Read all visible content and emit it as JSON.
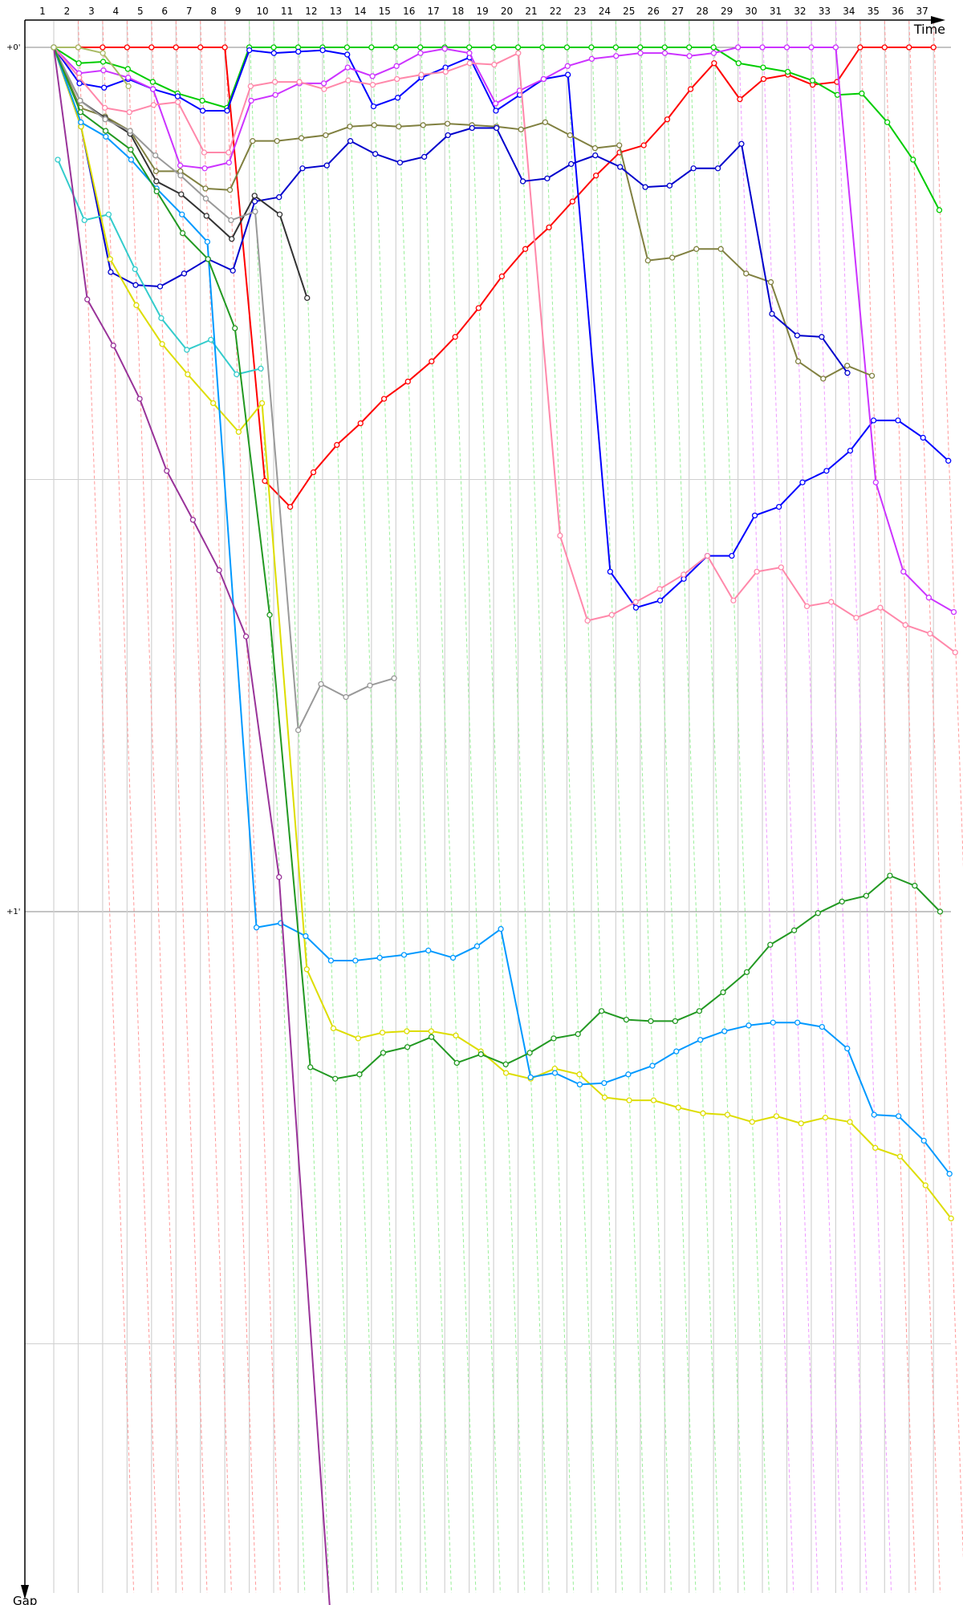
{
  "chart_data": {
    "type": "line",
    "xlabel": "Time",
    "ylabel": "Gap",
    "x_tick_labels": [
      "1",
      "2",
      "3",
      "4",
      "5",
      "6",
      "7",
      "8",
      "9",
      "10",
      "11",
      "12",
      "13",
      "14",
      "15",
      "16",
      "17",
      "18",
      "19",
      "20",
      "21",
      "22",
      "23",
      "24",
      "25",
      "26",
      "27",
      "28",
      "29",
      "30",
      "31",
      "32",
      "33",
      "34",
      "35",
      "36",
      "37"
    ],
    "y_tick_labels": [
      {
        "value": 0,
        "label": "+0'"
      },
      {
        "value": 60,
        "label": "+1'"
      }
    ],
    "y_gridlines_seconds": [
      0,
      30,
      60,
      90
    ],
    "ylim_seconds": [
      0,
      108
    ],
    "grid": true,
    "lap_line_colors": {
      "laps_1_7": "#ff9999",
      "laps_8_27": "#99ee99",
      "laps_28_32": "#ee99ff",
      "laps_33_36": "#ff9999"
    },
    "series": [
      {
        "color": "#ff0000",
        "values": [
          0,
          0,
          0,
          0,
          0,
          0,
          0,
          0,
          30.1,
          31.9,
          29.5,
          27.6,
          26.1,
          24.4,
          23.2,
          21.8,
          20.1,
          18.1,
          15.9,
          14.0,
          12.5,
          10.7,
          8.9,
          7.3,
          6.8,
          5.0,
          2.9,
          1.1,
          3.6,
          2.2,
          1.9,
          2.6,
          2.4,
          0,
          0,
          0,
          0
        ]
      },
      {
        "color": "#00cc00",
        "values": [
          0,
          1.1,
          1.0,
          1.5,
          2.4,
          3.2,
          3.7,
          4.2,
          0,
          0,
          0,
          0,
          0,
          0,
          0,
          0,
          0,
          0,
          0,
          0,
          0,
          0,
          0,
          0,
          0,
          0,
          0,
          0,
          1.1,
          1.4,
          1.7,
          2.3,
          3.3,
          3.2,
          5.2,
          7.8,
          11.3
        ]
      },
      {
        "color": "#0000ff",
        "values": [
          0,
          2.5,
          2.8,
          2.2,
          2.9,
          3.4,
          4.4,
          4.4,
          0.2,
          0.4,
          0.3,
          0.2,
          0.5,
          4.1,
          3.5,
          2.1,
          1.4,
          0.7,
          4.4,
          3.3,
          2.2,
          1.9,
          36.4,
          38.9,
          38.4,
          36.9,
          35.3,
          35.3,
          32.5,
          31.9,
          30.2,
          29.4,
          28.0,
          25.9,
          25.9,
          27.1,
          28.7
        ]
      },
      {
        "color": "#cc33ff",
        "values": [
          0,
          1.8,
          1.6,
          2.1,
          2.9,
          8.2,
          8.4,
          8.0,
          3.7,
          3.3,
          2.5,
          2.5,
          1.4,
          2.0,
          1.3,
          0.4,
          0.1,
          0.4,
          3.9,
          3.0,
          2.2,
          1.3,
          0.8,
          0.6,
          0.4,
          0.4,
          0.6,
          0.4,
          0,
          0,
          0,
          0,
          0,
          30.2,
          36.4,
          38.2,
          39.2
        ]
      },
      {
        "color": "#ff88aa",
        "values": [
          0,
          2.1,
          4.2,
          4.5,
          4.0,
          3.8,
          7.3,
          7.3,
          2.7,
          2.4,
          2.4,
          2.9,
          2.3,
          2.6,
          2.2,
          1.9,
          1.7,
          1.1,
          1.2,
          0.4,
          33.9,
          39.8,
          39.4,
          38.5,
          37.6,
          36.6,
          35.3,
          38.4,
          36.4,
          36.1,
          38.8,
          38.5,
          39.6,
          38.9,
          40.1,
          40.7,
          42.0
        ]
      },
      {
        "color": "#808040",
        "values": [
          0,
          4.2,
          4.8,
          5.8,
          8.6,
          8.6,
          9.8,
          9.9,
          6.5,
          6.5,
          6.3,
          6.1,
          5.5,
          5.4,
          5.5,
          5.4,
          5.3,
          5.4,
          5.5,
          5.7,
          5.2,
          6.1,
          7.0,
          6.8,
          14.8,
          14.6,
          14.0,
          14.0,
          15.7,
          16.3,
          21.8,
          23.0,
          22.1,
          22.8
        ]
      },
      {
        "color": "#0000cc",
        "values": [
          0,
          5.5,
          15.6,
          16.5,
          16.6,
          15.7,
          14.7,
          15.5,
          10.7,
          10.4,
          8.4,
          8.2,
          6.5,
          7.4,
          8.0,
          7.6,
          6.1,
          5.6,
          5.6,
          9.3,
          9.1,
          8.1,
          7.5,
          8.3,
          9.7,
          9.6,
          8.4,
          8.4,
          6.7,
          18.5,
          20.0,
          20.1,
          22.6
        ]
      },
      {
        "color": "#333333",
        "values": [
          0,
          3.7,
          4.9,
          6.0,
          9.3,
          10.2,
          11.7,
          13.3,
          10.3,
          11.6,
          17.4
        ]
      },
      {
        "color": "#999999",
        "values": [
          0,
          3.7,
          5.0,
          5.8,
          7.5,
          8.9,
          10.5,
          12.0,
          11.4,
          47.4,
          44.2,
          45.1,
          44.3,
          43.8
        ]
      },
      {
        "color": "#33cccc",
        "values": [
          7.8,
          12.0,
          11.6,
          15.4,
          18.8,
          21.0,
          20.3,
          22.7,
          22.3
        ]
      },
      {
        "color": "#dddd00",
        "values": [
          0,
          5.5,
          14.7,
          17.9,
          20.6,
          22.7,
          24.7,
          26.7,
          24.7,
          64.0,
          68.1,
          68.8,
          68.4,
          68.3,
          68.3,
          68.6,
          69.7,
          71.2,
          71.6,
          70.9,
          71.3,
          72.9,
          73.1,
          73.1,
          73.6,
          74.0,
          74.1,
          74.6,
          74.2,
          74.7,
          74.3,
          74.6,
          76.4,
          77.0,
          79.0,
          81.3
        ]
      },
      {
        "color": "#0099ff",
        "values": [
          0,
          5.2,
          6.2,
          7.8,
          9.8,
          11.6,
          13.5,
          61.1,
          60.8,
          61.7,
          63.4,
          63.4,
          63.2,
          63.0,
          62.7,
          63.2,
          62.4,
          61.2,
          71.5,
          71.2,
          72.0,
          71.9,
          71.3,
          70.7,
          69.7,
          68.9,
          68.3,
          67.9,
          67.7,
          67.7,
          68.0,
          69.5,
          74.1,
          74.2,
          75.9,
          78.2
        ]
      },
      {
        "color": "#229922",
        "values": [
          0,
          4.5,
          5.8,
          7.1,
          10.0,
          12.9,
          14.7,
          19.5,
          39.4,
          70.8,
          71.6,
          71.3,
          69.8,
          69.4,
          68.7,
          70.5,
          69.9,
          70.6,
          69.8,
          68.8,
          68.5,
          66.9,
          67.5,
          67.6,
          67.6,
          66.9,
          65.6,
          64.2,
          62.3,
          61.3,
          60.1,
          59.3,
          58.9,
          57.5,
          58.2,
          60.0
        ]
      },
      {
        "color": "#993399",
        "values": [
          0,
          17.5,
          20.7,
          24.4,
          29.4,
          32.8,
          36.3,
          40.9,
          57.6,
          109.1
        ]
      },
      {
        "color": "#aabb66",
        "values": [
          0,
          0,
          0.4,
          2.7
        ]
      }
    ]
  }
}
